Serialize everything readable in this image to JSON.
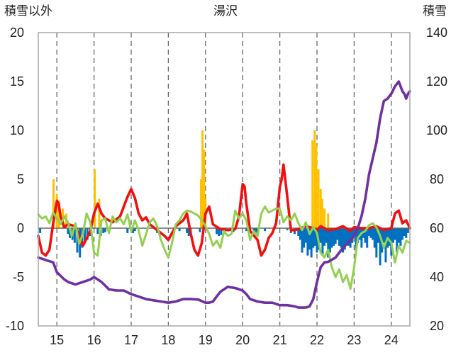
{
  "chart_data": {
    "type": "line",
    "title": "湯沢",
    "left_axis_label": "積雪以外",
    "right_axis_label": "積雪",
    "x_ticks": [
      "15",
      "16",
      "17",
      "18",
      "19",
      "20",
      "21",
      "22",
      "23",
      "24"
    ],
    "xlim": [
      14.5,
      24.5
    ],
    "ylim_left": [
      -10,
      20
    ],
    "yticks_left": [
      -10,
      -5,
      0,
      5,
      10,
      15,
      20
    ],
    "ylim_right": [
      20,
      140
    ],
    "yticks_right": [
      20,
      40,
      60,
      80,
      100,
      120,
      140
    ],
    "grid": "dashed vertical lines at each x tick, no horizontal grid",
    "colors": {
      "red": "#ee1111",
      "green": "#92d050",
      "purple": "#7030a0",
      "orange_bars": "#ffc000",
      "blue_bars": "#0070c0",
      "zero_line": "#666666"
    },
    "series": [
      {
        "color": "red",
        "axis": "left",
        "x": [
          14.5,
          14.6,
          14.7,
          14.8,
          14.9,
          15.0,
          15.05,
          15.1,
          15.2,
          15.3,
          15.5,
          15.7,
          15.9,
          16.0,
          16.1,
          16.2,
          16.3,
          16.5,
          16.7,
          16.9,
          17.0,
          17.1,
          17.2,
          17.3,
          17.4,
          17.5,
          17.7,
          17.9,
          18.0,
          18.1,
          18.2,
          18.4,
          18.5,
          18.6,
          18.7,
          18.8,
          18.9,
          19.0,
          19.1,
          19.2,
          19.4,
          19.6,
          19.8,
          19.9,
          20.0,
          20.05,
          20.1,
          20.2,
          20.4,
          20.5,
          20.6,
          20.7,
          20.8,
          20.9,
          21.0,
          21.05,
          21.1,
          21.2,
          21.3,
          21.4,
          21.5,
          21.7,
          21.9,
          22.0,
          22.1,
          22.3,
          22.5,
          22.7,
          22.9,
          23.0,
          23.2,
          23.4,
          23.6,
          23.8,
          24.0,
          24.1,
          24.2,
          24.3,
          24.4,
          24.5
        ],
        "y": [
          -0.8,
          -2.5,
          -2.8,
          -2.2,
          0.5,
          2.8,
          2.5,
          1.2,
          0.1,
          0.4,
          0.2,
          -1.8,
          -0.3,
          1.5,
          2.5,
          1.5,
          1.0,
          0.6,
          1.2,
          3.2,
          4.0,
          3.1,
          1.5,
          0.8,
          1.1,
          0.4,
          -0.2,
          -0.8,
          -1.2,
          -0.5,
          0.2,
          0.8,
          1.5,
          -0.5,
          -2.2,
          -2.8,
          -1.5,
          1.5,
          2.2,
          0.4,
          -0.1,
          -0.2,
          -0.1,
          1.2,
          4.5,
          4.3,
          2.5,
          -0.3,
          -1.2,
          -2.8,
          -2.2,
          -1.0,
          -0.5,
          0.5,
          4.2,
          5.0,
          6.5,
          3.2,
          -0.2,
          -0.2,
          -0.1,
          0.2,
          0.0,
          -0.2,
          0.2,
          -0.2,
          -0.1,
          0.2,
          -0.3,
          0.1,
          0.0,
          0.0,
          0.2,
          -0.2,
          0.0,
          1.5,
          1.8,
          0.5,
          0.8,
          0.0
        ]
      },
      {
        "color": "green",
        "axis": "left",
        "x": [
          14.5,
          14.6,
          14.7,
          14.8,
          14.9,
          15.0,
          15.1,
          15.2,
          15.3,
          15.4,
          15.5,
          15.6,
          15.7,
          15.8,
          15.9,
          16.0,
          16.1,
          16.2,
          16.3,
          16.4,
          16.5,
          16.6,
          16.7,
          16.8,
          16.9,
          17.0,
          17.1,
          17.2,
          17.3,
          17.4,
          17.5,
          17.6,
          17.7,
          17.8,
          17.9,
          18.0,
          18.1,
          18.2,
          18.3,
          18.4,
          18.5,
          18.6,
          18.7,
          18.8,
          18.9,
          19.0,
          19.1,
          19.2,
          19.3,
          19.4,
          19.5,
          19.6,
          19.7,
          19.8,
          19.9,
          20.0,
          20.1,
          20.2,
          20.3,
          20.4,
          20.5,
          20.6,
          20.7,
          20.8,
          20.9,
          21.0,
          21.1,
          21.2,
          21.3,
          21.4,
          21.5,
          21.6,
          21.7,
          21.8,
          21.9,
          22.0,
          22.1,
          22.2,
          22.3,
          22.4,
          22.5,
          22.6,
          22.7,
          22.8,
          22.9,
          23.0,
          23.1,
          23.2,
          23.3,
          23.4,
          23.5,
          23.6,
          23.7,
          23.8,
          23.9,
          24.0,
          24.1,
          24.2,
          24.3,
          24.4,
          24.5
        ],
        "y": [
          1.4,
          1.0,
          1.2,
          0.5,
          1.6,
          1.0,
          0.4,
          1.2,
          0.6,
          -0.8,
          0.5,
          -1.6,
          -0.6,
          1.5,
          0.6,
          -2.5,
          -2.8,
          0.8,
          1.0,
          -0.5,
          1.2,
          0.6,
          1.0,
          0.4,
          1.4,
          -0.3,
          0.8,
          -0.2,
          -1.8,
          -0.6,
          0.6,
          1.0,
          0.2,
          -1.2,
          -2.2,
          -3.0,
          -1.5,
          0.4,
          0.8,
          1.5,
          1.8,
          1.7,
          1.5,
          1.3,
          0.8,
          0.2,
          -0.6,
          -1.8,
          -1.3,
          -2.0,
          -0.3,
          -0.8,
          -0.6,
          1.8,
          1.0,
          1.5,
          0.8,
          -1.2,
          -0.3,
          -0.8,
          1.5,
          2.2,
          1.6,
          1.8,
          2.0,
          2.0,
          0.6,
          1.2,
          0.8,
          1.5,
          0.5,
          -0.2,
          0.6,
          -0.6,
          0.1,
          -0.5,
          -2.5,
          -3.0,
          -2.2,
          -4.0,
          -5.0,
          -4.2,
          -5.5,
          -4.8,
          -6.2,
          -4.0,
          -1.0,
          -0.5,
          -0.3,
          0.3,
          0.5,
          0.1,
          -0.8,
          -2.0,
          -1.0,
          -1.5,
          -3.5,
          -1.8,
          -2.5,
          -1.3,
          -1.5
        ]
      },
      {
        "color": "purple",
        "axis": "right",
        "x": [
          14.5,
          14.7,
          14.9,
          15.0,
          15.2,
          15.3,
          15.5,
          15.7,
          15.9,
          16.0,
          16.2,
          16.4,
          16.6,
          16.8,
          17.0,
          17.2,
          17.4,
          17.6,
          17.8,
          18.0,
          18.2,
          18.4,
          18.6,
          18.8,
          19.0,
          19.1,
          19.2,
          19.3,
          19.4,
          19.5,
          19.6,
          19.8,
          20.0,
          20.1,
          20.2,
          20.4,
          20.6,
          20.8,
          21.0,
          21.2,
          21.4,
          21.5,
          21.6,
          21.7,
          21.8,
          21.9,
          22.0,
          22.1,
          22.2,
          22.3,
          22.5,
          22.7,
          22.9,
          23.0,
          23.1,
          23.2,
          23.3,
          23.4,
          23.6,
          23.7,
          23.8,
          23.9,
          24.0,
          24.1,
          24.2,
          24.25,
          24.3,
          24.35,
          24.4,
          24.45,
          24.5
        ],
        "y": [
          48,
          47,
          46,
          42,
          39,
          38,
          37,
          38,
          39,
          40,
          38,
          35,
          34.5,
          34.5,
          33,
          32,
          31,
          30.5,
          30,
          29.5,
          30,
          31,
          31,
          30.8,
          29.5,
          29.5,
          30,
          32,
          34,
          35,
          36,
          35.5,
          34.5,
          33,
          31,
          30,
          29.5,
          29.5,
          28.5,
          28.5,
          28,
          27.5,
          27.5,
          27.5,
          28,
          31,
          38,
          44,
          46,
          46.2,
          48,
          52,
          55,
          57,
          60,
          65,
          72,
          82,
          95,
          105,
          112,
          113,
          115,
          118,
          120,
          118,
          116,
          115,
          113,
          115,
          116
        ]
      }
    ],
    "bars": [
      {
        "color": "orange_bars",
        "axis": "left",
        "x": [
          14.91,
          15.0,
          15.06,
          15.16,
          15.25,
          16.02,
          16.14,
          18.88,
          18.92,
          18.96,
          19.0,
          21.88,
          21.94,
          21.98,
          22.04,
          22.1,
          22.14,
          22.2,
          22.3
        ],
        "y": [
          5.0,
          3.5,
          2.8,
          2.0,
          1.5,
          6.0,
          3.0,
          5.0,
          10.0,
          8.0,
          3.0,
          9.0,
          10.0,
          8.5,
          6.0,
          4.0,
          3.0,
          2.0,
          1.5
        ]
      },
      {
        "color": "blue_bars",
        "axis": "left",
        "x": [
          14.55,
          15.3,
          15.35,
          15.42,
          15.48,
          15.55,
          15.62,
          15.68,
          15.75,
          15.82,
          15.9,
          16.1,
          16.18,
          16.25,
          16.3,
          16.9,
          17.05,
          17.1,
          17.7,
          18.3,
          18.5,
          18.55,
          18.6,
          18.85,
          19.3,
          19.36,
          19.42,
          19.5,
          19.75,
          20.1,
          20.3,
          20.35,
          20.4,
          20.6,
          21.2,
          21.3,
          21.4,
          21.5,
          21.55,
          21.6,
          21.65,
          21.7,
          21.75,
          21.8,
          21.85,
          21.9,
          21.95,
          22.0,
          22.05,
          22.1,
          22.15,
          22.2,
          22.25,
          22.3,
          22.35,
          22.4,
          22.45,
          22.5,
          22.55,
          22.6,
          22.65,
          22.7,
          22.75,
          22.8,
          22.85,
          22.9,
          22.95,
          23.0,
          23.05,
          23.1,
          23.15,
          23.2,
          23.25,
          23.3,
          23.35,
          23.4,
          23.45,
          23.5,
          23.55,
          23.6,
          23.65,
          23.7,
          23.75,
          23.8,
          23.85,
          23.9,
          23.95,
          24.0,
          24.05,
          24.1,
          24.15,
          24.2,
          24.25,
          24.3,
          24.35,
          24.4,
          24.45
        ],
        "y": [
          -0.5,
          -0.6,
          -1.0,
          -1.2,
          -1.5,
          -2.5,
          -3.0,
          -2.0,
          -1.5,
          -1.2,
          -0.8,
          -0.6,
          -0.8,
          -0.5,
          -0.4,
          -0.5,
          -0.5,
          -0.3,
          -0.5,
          -0.3,
          -0.5,
          -0.8,
          -0.6,
          -0.4,
          -0.6,
          -0.8,
          -0.7,
          -0.5,
          -0.4,
          -0.3,
          -0.5,
          -0.4,
          -0.6,
          -0.3,
          -0.2,
          -0.5,
          -0.6,
          -0.8,
          -1.2,
          -2.5,
          -2.0,
          -1.5,
          -2.8,
          -2.2,
          -3.0,
          -2.0,
          -1.8,
          -2.5,
          -2.2,
          -1.5,
          -2.8,
          -1.8,
          -1.5,
          -3.0,
          -2.5,
          -2.0,
          -1.8,
          -1.6,
          -1.2,
          -1.8,
          -2.0,
          -2.5,
          -2.2,
          -1.5,
          -1.8,
          -2.0,
          -1.5,
          -0.8,
          -2.5,
          -1.5,
          -1.2,
          -2.0,
          -1.0,
          -1.5,
          -2.0,
          -0.8,
          -1.0,
          -1.2,
          -2.0,
          -3.0,
          -1.5,
          -3.8,
          -2.5,
          -1.5,
          -3.5,
          -2.0,
          -1.8,
          -2.8,
          -1.5,
          -1.2,
          -2.5,
          -1.5,
          -1.8,
          -1.2,
          -0.8,
          -1.0,
          -0.5
        ]
      }
    ]
  }
}
